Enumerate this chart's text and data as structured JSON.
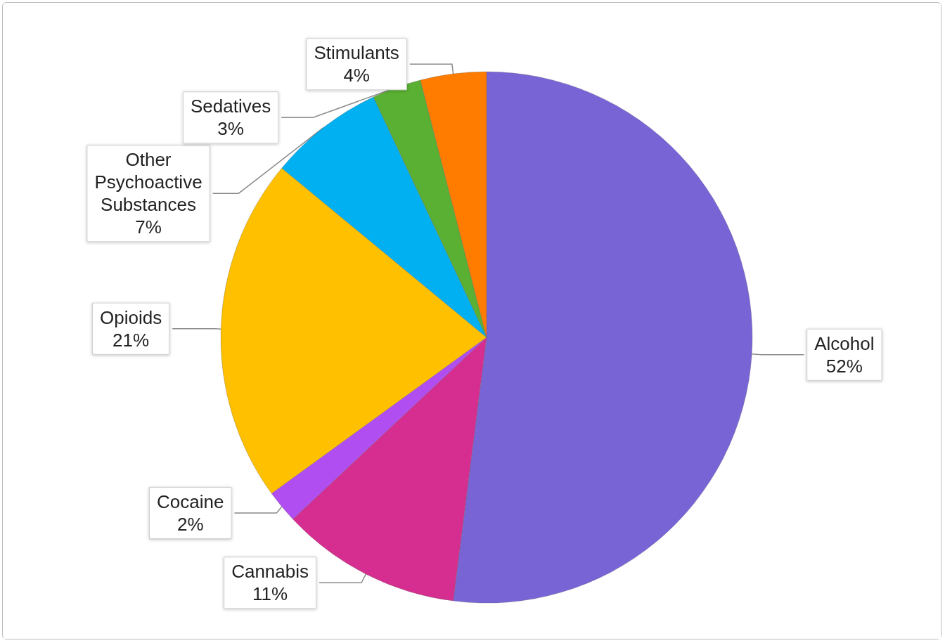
{
  "chart_data": {
    "type": "pie",
    "categories": [
      "Alcohol",
      "Cannabis",
      "Cocaine",
      "Opioids",
      "Other Psychoactive Substances",
      "Sedatives",
      "Stimulants"
    ],
    "values": [
      52,
      11,
      2,
      21,
      7,
      3,
      4
    ],
    "colors": [
      "#7964d6",
      "#d62e90",
      "#b14ef2",
      "#ffc000",
      "#00b0f0",
      "#5ab032",
      "#ff7c00"
    ],
    "value_labels": [
      "52%",
      "11%",
      "2%",
      "21%",
      "7%",
      "3%",
      "4%"
    ]
  }
}
